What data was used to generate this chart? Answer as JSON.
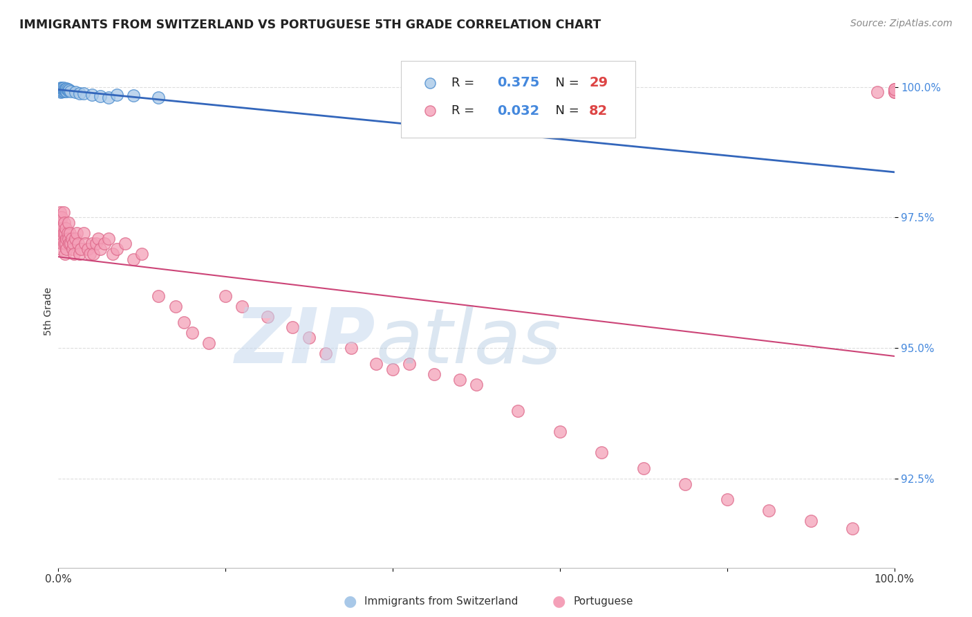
{
  "title": "IMMIGRANTS FROM SWITZERLAND VS PORTUGUESE 5TH GRADE CORRELATION CHART",
  "source": "Source: ZipAtlas.com",
  "ylabel": "5th Grade",
  "legend1_label": "Immigrants from Switzerland",
  "legend2_label": "Portuguese",
  "legend1_R": "0.375",
  "legend1_N": "29",
  "legend2_R": "0.032",
  "legend2_N": "82",
  "xlim": [
    0.0,
    1.0
  ],
  "ylim": [
    0.908,
    1.006
  ],
  "yticks": [
    0.925,
    0.95,
    0.975,
    1.0
  ],
  "ytick_labels": [
    "92.5%",
    "95.0%",
    "97.5%",
    "100.0%"
  ],
  "xticks": [
    0.0,
    0.2,
    0.4,
    0.6,
    0.8,
    1.0
  ],
  "xtick_labels": [
    "0.0%",
    "",
    "",
    "",
    "",
    "100.0%"
  ],
  "color_swiss_fill": "#a8c8e8",
  "color_swiss_edge": "#4488cc",
  "color_portuguese_fill": "#f4a0b8",
  "color_portuguese_edge": "#dd6688",
  "color_swiss_line": "#3366bb",
  "color_portuguese_line": "#cc4477",
  "color_ytick": "#4488dd",
  "color_grid": "#dddddd",
  "background_color": "#ffffff",
  "watermark_zip_color": "#c5d8ee",
  "watermark_atlas_color": "#b0c8e0",
  "swiss_x": [
    0.001,
    0.002,
    0.003,
    0.003,
    0.004,
    0.004,
    0.005,
    0.005,
    0.006,
    0.006,
    0.007,
    0.007,
    0.008,
    0.009,
    0.01,
    0.01,
    0.011,
    0.012,
    0.013,
    0.015,
    0.02,
    0.025,
    0.03,
    0.04,
    0.05,
    0.06,
    0.07,
    0.09,
    0.12
  ],
  "swiss_y": [
    0.9995,
    0.9995,
    0.999,
    0.9998,
    0.9992,
    0.9998,
    0.9993,
    0.9997,
    0.9994,
    0.9998,
    0.9992,
    0.9996,
    0.9994,
    0.9993,
    0.9991,
    0.9997,
    0.9995,
    0.9993,
    0.9994,
    0.9992,
    0.999,
    0.9988,
    0.9987,
    0.9985,
    0.9982,
    0.998,
    0.9985,
    0.9983,
    0.998
  ],
  "port_x": [
    0.001,
    0.002,
    0.002,
    0.003,
    0.003,
    0.004,
    0.004,
    0.005,
    0.005,
    0.006,
    0.006,
    0.007,
    0.007,
    0.008,
    0.008,
    0.009,
    0.009,
    0.01,
    0.01,
    0.011,
    0.012,
    0.012,
    0.013,
    0.014,
    0.015,
    0.016,
    0.017,
    0.018,
    0.019,
    0.02,
    0.022,
    0.024,
    0.025,
    0.027,
    0.03,
    0.032,
    0.035,
    0.038,
    0.04,
    0.042,
    0.045,
    0.048,
    0.05,
    0.055,
    0.06,
    0.065,
    0.07,
    0.08,
    0.09,
    0.1,
    0.12,
    0.14,
    0.15,
    0.16,
    0.18,
    0.2,
    0.22,
    0.25,
    0.28,
    0.3,
    0.32,
    0.35,
    0.38,
    0.4,
    0.42,
    0.45,
    0.48,
    0.5,
    0.55,
    0.6,
    0.65,
    0.7,
    0.75,
    0.8,
    0.85,
    0.9,
    0.95,
    0.98,
    1.0,
    1.0,
    1.0,
    1.0
  ],
  "port_y": [
    0.975,
    0.972,
    0.976,
    0.974,
    0.969,
    0.971,
    0.975,
    0.973,
    0.97,
    0.972,
    0.976,
    0.97,
    0.974,
    0.972,
    0.968,
    0.97,
    0.973,
    0.971,
    0.969,
    0.972,
    0.974,
    0.971,
    0.97,
    0.972,
    0.97,
    0.971,
    0.969,
    0.97,
    0.968,
    0.971,
    0.972,
    0.97,
    0.968,
    0.969,
    0.972,
    0.97,
    0.969,
    0.968,
    0.97,
    0.968,
    0.97,
    0.971,
    0.969,
    0.97,
    0.971,
    0.968,
    0.969,
    0.97,
    0.967,
    0.968,
    0.96,
    0.958,
    0.955,
    0.953,
    0.951,
    0.96,
    0.958,
    0.956,
    0.954,
    0.952,
    0.949,
    0.95,
    0.947,
    0.946,
    0.947,
    0.945,
    0.944,
    0.943,
    0.938,
    0.934,
    0.93,
    0.927,
    0.924,
    0.921,
    0.919,
    0.917,
    0.9155,
    0.999,
    0.999,
    0.9995,
    0.999,
    0.9995
  ]
}
